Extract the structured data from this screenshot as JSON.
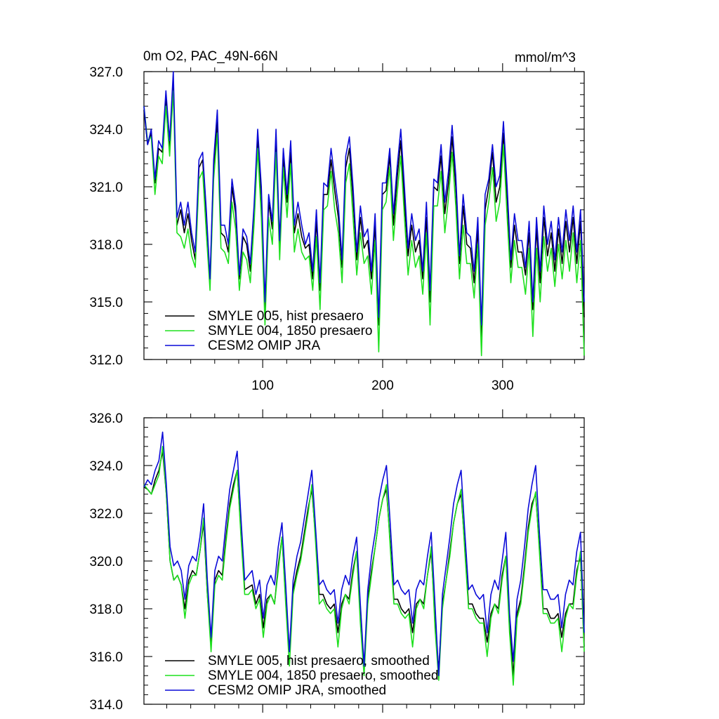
{
  "chart_data": [
    {
      "type": "line",
      "title": "0m O2, PAC_49N-66N",
      "units": "mmol/m^3",
      "xlim": [
        1,
        368
      ],
      "ylim": [
        312.0,
        327.0
      ],
      "y_ticks": [
        312.0,
        315.0,
        318.0,
        321.0,
        324.0,
        327.0
      ],
      "y_tick_labels": [
        "312.0",
        "315.0",
        "318.0",
        "321.0",
        "324.0",
        "327.0"
      ],
      "x_ticks": [
        100,
        200,
        300
      ],
      "x_tick_labels": [
        "100",
        "200",
        "300"
      ],
      "legend_position": "bottom-left",
      "series": [
        {
          "name": "SMYLE 005, hist presaero",
          "color": "#000000",
          "id": "s005",
          "values": [
            325.0,
            323.2,
            323.8,
            321.2,
            323.0,
            322.8,
            325.6,
            323.0,
            326.5,
            319.0,
            319.8,
            318.6,
            319.6,
            318.2,
            317.2,
            322.0,
            322.4,
            319.4,
            316.0,
            322.0,
            324.4,
            318.6,
            318.4,
            317.6,
            321.0,
            319.6,
            316.2,
            318.4,
            318.0,
            316.6,
            319.6,
            323.6,
            320.4,
            314.6,
            320.2,
            318.8,
            323.4,
            317.8,
            322.6,
            320.2,
            322.8,
            318.6,
            319.6,
            318.4,
            317.8,
            318.0,
            316.2,
            319.2,
            315.6,
            320.6,
            320.6,
            322.4,
            320.8,
            319.4,
            316.8,
            322.0,
            323.0,
            320.4,
            317.2,
            319.4,
            317.8,
            318.2,
            316.2,
            319.0,
            313.8,
            320.6,
            320.8,
            322.6,
            319.0,
            321.4,
            323.4,
            320.2,
            317.4,
            319.0,
            317.6,
            318.2,
            316.2,
            319.4,
            315.0,
            321.0,
            320.8,
            322.6,
            319.6,
            321.2,
            323.6,
            321.0,
            317.0,
            320.0,
            318.0,
            317.8,
            316.0,
            318.8,
            313.2,
            319.8,
            321.0,
            322.8,
            320.2,
            321.0,
            323.8,
            320.4,
            316.8,
            319.0,
            317.6,
            317.6,
            316.4,
            318.6,
            314.6,
            318.8,
            316.0,
            319.4,
            317.4,
            318.6,
            316.6,
            318.8,
            317.0,
            319.2,
            317.6,
            319.4,
            317.0,
            319.2,
            314.2
          ]
        },
        {
          "name": "SMYLE 004, 1850 presaero",
          "color": "#1ee01e",
          "id": "s004",
          "values": [
            325.2,
            323.4,
            323.6,
            320.6,
            322.6,
            322.2,
            325.2,
            322.6,
            326.0,
            318.6,
            318.4,
            317.8,
            318.8,
            317.4,
            316.8,
            321.4,
            321.8,
            318.6,
            315.6,
            321.4,
            323.8,
            317.8,
            317.6,
            317.0,
            320.2,
            318.8,
            315.6,
            317.6,
            317.2,
            316.0,
            319.0,
            323.0,
            319.4,
            313.8,
            319.4,
            318.0,
            322.8,
            317.2,
            322.0,
            319.4,
            322.2,
            317.6,
            318.8,
            317.6,
            317.2,
            317.4,
            315.6,
            318.4,
            314.6,
            319.8,
            320.0,
            321.8,
            319.8,
            318.6,
            316.0,
            321.2,
            322.2,
            319.4,
            316.4,
            318.6,
            317.0,
            317.4,
            315.4,
            318.2,
            312.4,
            319.8,
            320.2,
            322.0,
            318.2,
            320.6,
            322.6,
            319.4,
            316.4,
            318.2,
            316.8,
            317.4,
            315.4,
            318.6,
            313.8,
            320.0,
            320.0,
            321.8,
            318.6,
            320.4,
            322.8,
            320.0,
            316.2,
            319.0,
            317.0,
            317.0,
            315.2,
            318.0,
            312.2,
            319.0,
            320.2,
            322.0,
            319.2,
            320.2,
            323.2,
            319.4,
            316.0,
            318.2,
            316.8,
            316.8,
            315.4,
            317.8,
            313.2,
            317.8,
            315.0,
            318.4,
            316.6,
            317.8,
            315.8,
            318.0,
            316.2,
            318.2,
            316.6,
            318.6,
            316.0,
            318.2,
            312.2
          ]
        },
        {
          "name": "CESM2 OMIP JRA",
          "color": "#0a0ad8",
          "id": "omip",
          "values": [
            325.2,
            323.2,
            324.0,
            321.4,
            323.4,
            323.0,
            326.0,
            323.4,
            327.0,
            319.4,
            320.2,
            319.0,
            320.2,
            318.6,
            317.6,
            322.4,
            322.8,
            319.8,
            316.2,
            322.4,
            325.0,
            319.0,
            319.0,
            318.0,
            321.4,
            320.0,
            316.4,
            318.8,
            318.4,
            317.0,
            320.0,
            324.0,
            321.0,
            315.0,
            320.6,
            319.2,
            324.0,
            318.2,
            323.0,
            320.6,
            323.4,
            319.0,
            320.2,
            319.0,
            318.0,
            318.6,
            316.6,
            319.8,
            316.0,
            321.2,
            321.0,
            323.0,
            321.4,
            320.0,
            317.2,
            322.6,
            323.6,
            321.0,
            317.6,
            320.0,
            318.4,
            318.8,
            316.6,
            319.6,
            314.2,
            321.2,
            321.2,
            323.0,
            319.6,
            322.0,
            324.0,
            321.0,
            317.8,
            319.6,
            318.2,
            318.8,
            316.6,
            320.2,
            315.6,
            321.4,
            321.2,
            323.2,
            320.2,
            321.8,
            324.2,
            321.6,
            317.4,
            320.6,
            318.6,
            318.4,
            316.6,
            319.4,
            313.8,
            320.6,
            321.4,
            323.2,
            321.0,
            321.6,
            324.4,
            321.0,
            317.2,
            319.6,
            318.2,
            318.2,
            316.8,
            319.2,
            315.0,
            319.4,
            316.6,
            320.0,
            318.0,
            319.2,
            317.2,
            319.4,
            317.6,
            319.8,
            318.2,
            320.0,
            317.6,
            319.8,
            315.0
          ]
        }
      ]
    },
    {
      "type": "line",
      "title": "",
      "xlim": [
        1,
        368
      ],
      "ylim": [
        314.0,
        326.0
      ],
      "y_ticks": [
        314.0,
        316.0,
        318.0,
        320.0,
        322.0,
        324.0,
        326.0
      ],
      "y_tick_labels": [
        "314.0",
        "316.0",
        "318.0",
        "320.0",
        "322.0",
        "324.0",
        "326.0"
      ],
      "x_ticks": [
        100,
        200,
        300
      ],
      "x_tick_labels": [
        "",
        "",
        ""
      ],
      "legend_position": "bottom-left",
      "series": [
        {
          "name": "SMYLE 005, hist presaero, smoothed",
          "color": "#000000",
          "id": "s005s",
          "values": [
            323.1,
            323.0,
            322.8,
            323.4,
            323.8,
            324.6,
            322.8,
            320.0,
            319.2,
            319.4,
            319.0,
            318.0,
            319.2,
            319.6,
            319.4,
            320.4,
            321.6,
            318.6,
            316.6,
            319.2,
            319.6,
            319.4,
            321.0,
            322.4,
            323.2,
            323.8,
            321.2,
            318.8,
            318.9,
            319.0,
            318.2,
            318.6,
            317.2,
            318.4,
            318.6,
            318.2,
            319.8,
            321.0,
            318.4,
            316.2,
            318.8,
            319.6,
            320.2,
            321.2,
            322.2,
            323.0,
            321.0,
            318.6,
            318.6,
            318.2,
            318.0,
            318.2,
            317.0,
            318.2,
            318.6,
            318.4,
            319.6,
            320.4,
            317.8,
            315.6,
            318.4,
            319.6,
            320.6,
            321.8,
            322.6,
            323.0,
            320.8,
            318.4,
            318.4,
            318.0,
            317.8,
            318.0,
            317.0,
            318.2,
            318.4,
            318.2,
            319.4,
            320.4,
            317.6,
            315.4,
            318.2,
            319.2,
            320.4,
            321.6,
            322.4,
            322.8,
            320.6,
            318.2,
            318.2,
            317.8,
            317.6,
            317.6,
            316.6,
            317.8,
            318.2,
            318.0,
            319.4,
            320.2,
            317.4,
            315.2,
            317.8,
            318.4,
            319.8,
            321.4,
            322.4,
            322.8,
            320.6,
            318.0,
            318.0,
            317.6,
            317.6,
            317.8,
            316.8,
            317.8,
            318.2,
            318.2,
            319.6,
            320.2,
            316.4
          ]
        },
        {
          "name": "SMYLE 004, 1850 presaero, smoothed",
          "color": "#1ee01e",
          "id": "s004s",
          "values": [
            323.2,
            323.0,
            322.8,
            323.2,
            323.6,
            324.8,
            322.8,
            320.0,
            319.2,
            319.4,
            319.0,
            317.6,
            319.0,
            319.4,
            319.4,
            320.4,
            321.8,
            318.6,
            316.2,
            319.0,
            319.4,
            319.2,
            320.8,
            322.2,
            323.0,
            323.8,
            321.0,
            318.6,
            318.6,
            318.8,
            318.0,
            318.4,
            316.8,
            318.2,
            318.6,
            318.2,
            319.6,
            321.0,
            318.2,
            315.6,
            318.6,
            319.4,
            320.0,
            321.0,
            322.0,
            323.2,
            320.8,
            318.2,
            318.4,
            318.0,
            317.8,
            318.0,
            316.4,
            318.0,
            318.6,
            318.2,
            319.4,
            320.4,
            317.4,
            315.2,
            318.2,
            319.4,
            320.6,
            321.8,
            322.6,
            323.2,
            320.6,
            318.2,
            318.2,
            317.8,
            317.6,
            317.8,
            316.4,
            318.0,
            318.4,
            318.0,
            319.4,
            320.6,
            317.2,
            315.0,
            318.0,
            319.2,
            320.2,
            321.6,
            322.4,
            323.0,
            320.4,
            318.0,
            318.0,
            317.6,
            317.4,
            317.4,
            316.0,
            317.6,
            318.2,
            317.8,
            319.2,
            320.2,
            317.0,
            314.8,
            317.6,
            318.2,
            319.6,
            321.2,
            322.2,
            322.9,
            320.4,
            317.8,
            317.8,
            317.4,
            317.4,
            317.6,
            316.2,
            317.6,
            318.2,
            318.0,
            319.4,
            320.4,
            316.2
          ]
        },
        {
          "name": "CESM2 OMIP JRA, smoothed",
          "color": "#0a0ad8",
          "id": "omips",
          "values": [
            323.1,
            323.4,
            323.2,
            323.8,
            324.2,
            325.4,
            323.2,
            320.6,
            319.8,
            320.0,
            319.6,
            318.4,
            319.8,
            320.2,
            320.0,
            321.0,
            322.4,
            319.2,
            316.8,
            319.6,
            320.2,
            320.0,
            321.6,
            323.0,
            323.8,
            324.6,
            321.8,
            319.2,
            319.4,
            319.6,
            318.6,
            319.2,
            317.6,
            319.0,
            319.4,
            319.0,
            320.6,
            321.6,
            319.0,
            316.2,
            319.2,
            320.2,
            320.8,
            321.8,
            322.8,
            323.8,
            321.4,
            319.0,
            319.2,
            318.8,
            318.6,
            318.8,
            317.4,
            318.8,
            319.4,
            319.0,
            320.2,
            321.0,
            318.2,
            315.6,
            318.8,
            320.2,
            321.2,
            322.6,
            323.4,
            324.0,
            321.6,
            319.0,
            319.2,
            318.8,
            318.6,
            318.8,
            317.4,
            318.8,
            319.2,
            319.0,
            320.2,
            321.2,
            318.2,
            315.2,
            318.6,
            319.8,
            321.0,
            322.4,
            323.2,
            323.8,
            321.2,
            318.8,
            319.0,
            318.6,
            318.4,
            318.6,
            317.0,
            318.6,
            319.2,
            318.8,
            320.0,
            321.2,
            317.8,
            315.8,
            318.4,
            319.2,
            320.6,
            322.2,
            323.2,
            324.0,
            321.2,
            318.8,
            318.8,
            318.4,
            318.4,
            318.6,
            317.2,
            318.6,
            319.2,
            319.0,
            320.4,
            321.2,
            317.0
          ]
        }
      ]
    }
  ]
}
